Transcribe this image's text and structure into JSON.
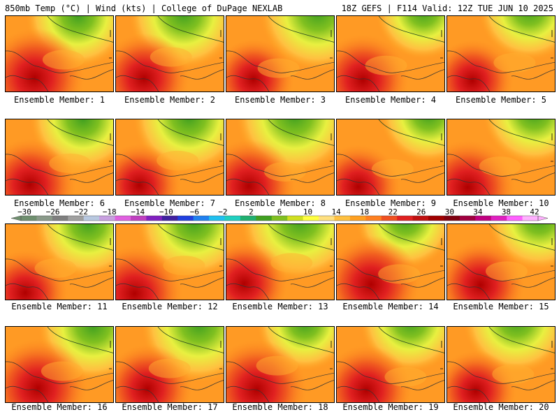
{
  "header": {
    "left_title": "850mb Temp (°C) | Wind (kts) | College of DuPage NEXLAB",
    "right_title": "18Z GEFS | F114 Valid: 12Z TUE JUN 10 2025"
  },
  "members": [
    "Ensemble Member: 1",
    "Ensemble Member: 2",
    "Ensemble Member: 3",
    "Ensemble Member: 4",
    "Ensemble Member: 5",
    "Ensemble Member: 6",
    "Ensemble Member: 7",
    "Ensemble Member: 8",
    "Ensemble Member: 9",
    "Ensemble Member: 10",
    "Ensemble Member: 11",
    "Ensemble Member: 12",
    "Ensemble Member: 13",
    "Ensemble Member: 14",
    "Ensemble Member: 15",
    "Ensemble Member: 16",
    "Ensemble Member: 17",
    "Ensemble Member: 18",
    "Ensemble Member: 19",
    "Ensemble Member: 20"
  ],
  "colorbar": {
    "labels": [
      "−30",
      "−26",
      "−22",
      "−18",
      "−14",
      "−10",
      "−6",
      "−2",
      "2",
      "6",
      "10",
      "14",
      "18",
      "22",
      "26",
      "30",
      "34",
      "38",
      "42"
    ],
    "colors": [
      "#6f8f6f",
      "#8a9a8a",
      "#7f7f7f",
      "#a0a0a0",
      "#b8c8e0",
      "#c8a0e0",
      "#e060e0",
      "#c040c0",
      "#8020c0",
      "#4020a0",
      "#2040e0",
      "#2080f0",
      "#20c0f0",
      "#20d0c0",
      "#20b070",
      "#40a020",
      "#80c020",
      "#d0e020",
      "#ffff40",
      "#ffe080",
      "#ffc040",
      "#ffa020",
      "#ff8020",
      "#f05020",
      "#e02020",
      "#c01010",
      "#a00000",
      "#800010",
      "#a00040",
      "#c00080",
      "#e020c0",
      "#ff60ff",
      "#ffb0ff"
    ]
  }
}
